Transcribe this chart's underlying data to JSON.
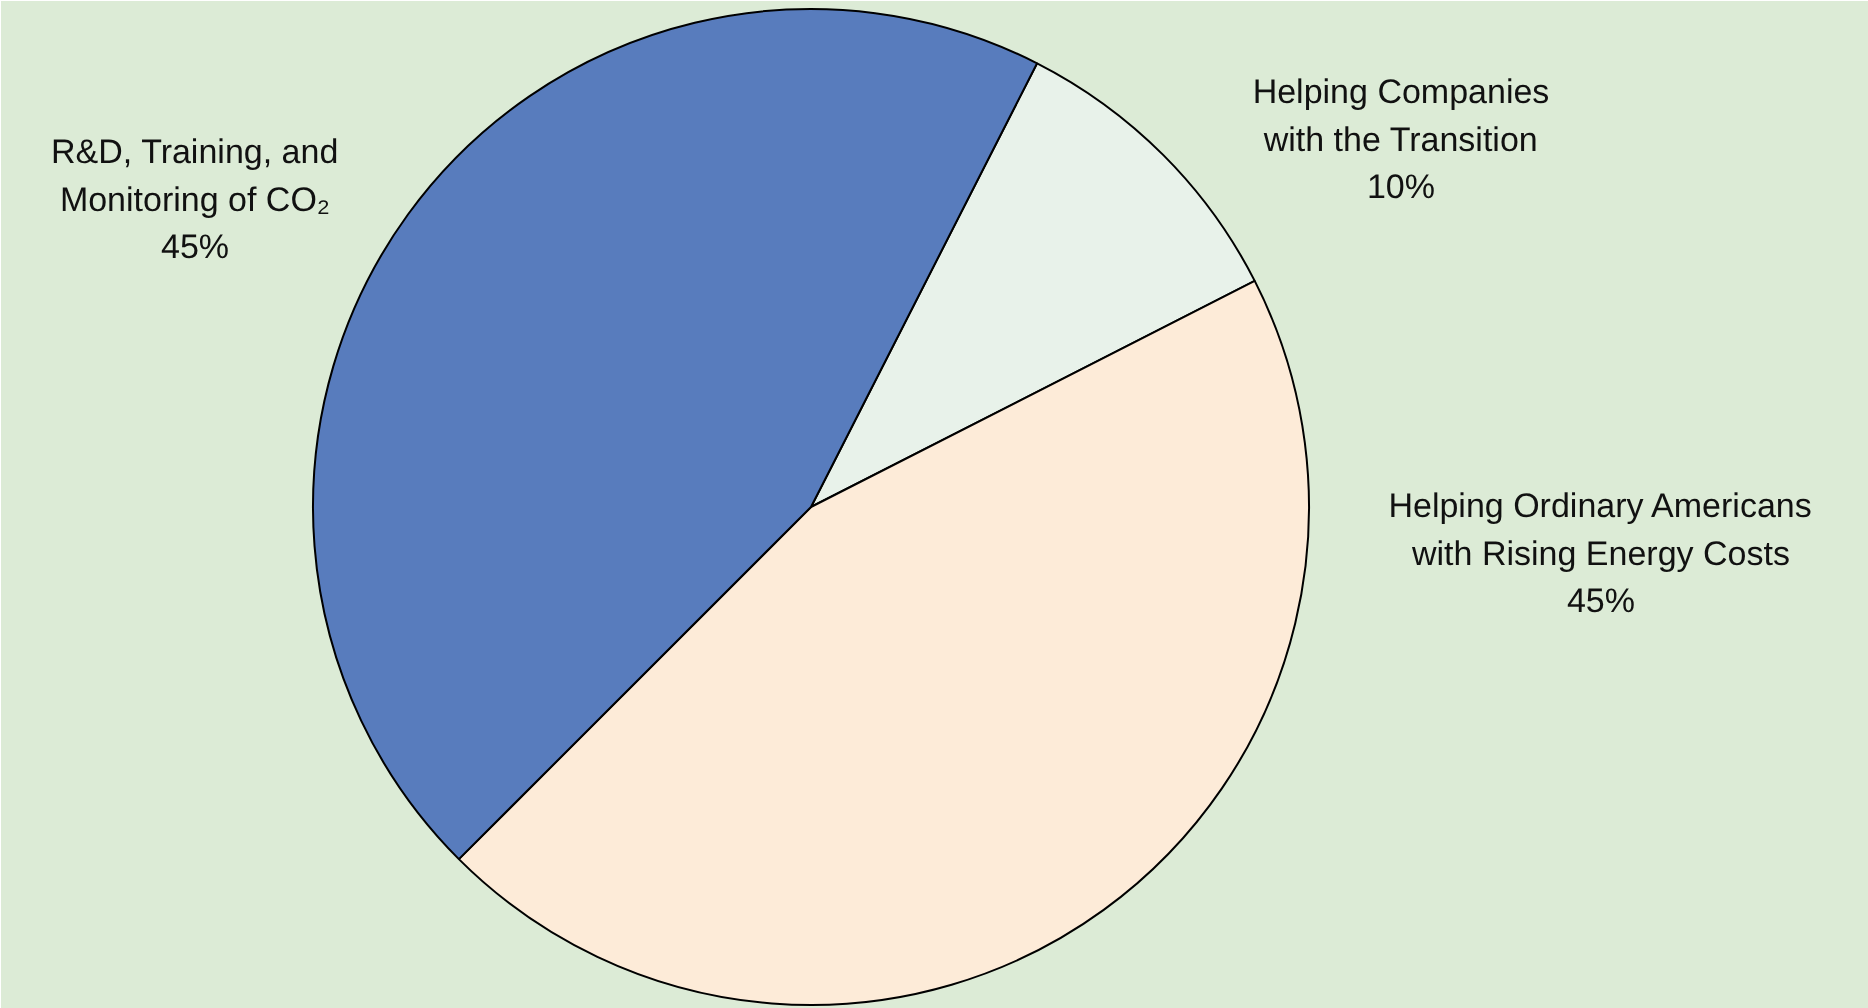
{
  "chart_data": {
    "type": "pie",
    "categories": [
      "Helping Companies\nwith the Transition",
      "Helping Ordinary Americans\nwith Rising Energy Costs",
      "R&D, Training, and\nMonitoring of CO₂"
    ],
    "values": [
      10,
      45,
      45
    ],
    "colors": [
      "#e8f2ea",
      "#fdebd8",
      "#587cbd"
    ],
    "value_labels": [
      "10%",
      "45%",
      "45%"
    ]
  }
}
